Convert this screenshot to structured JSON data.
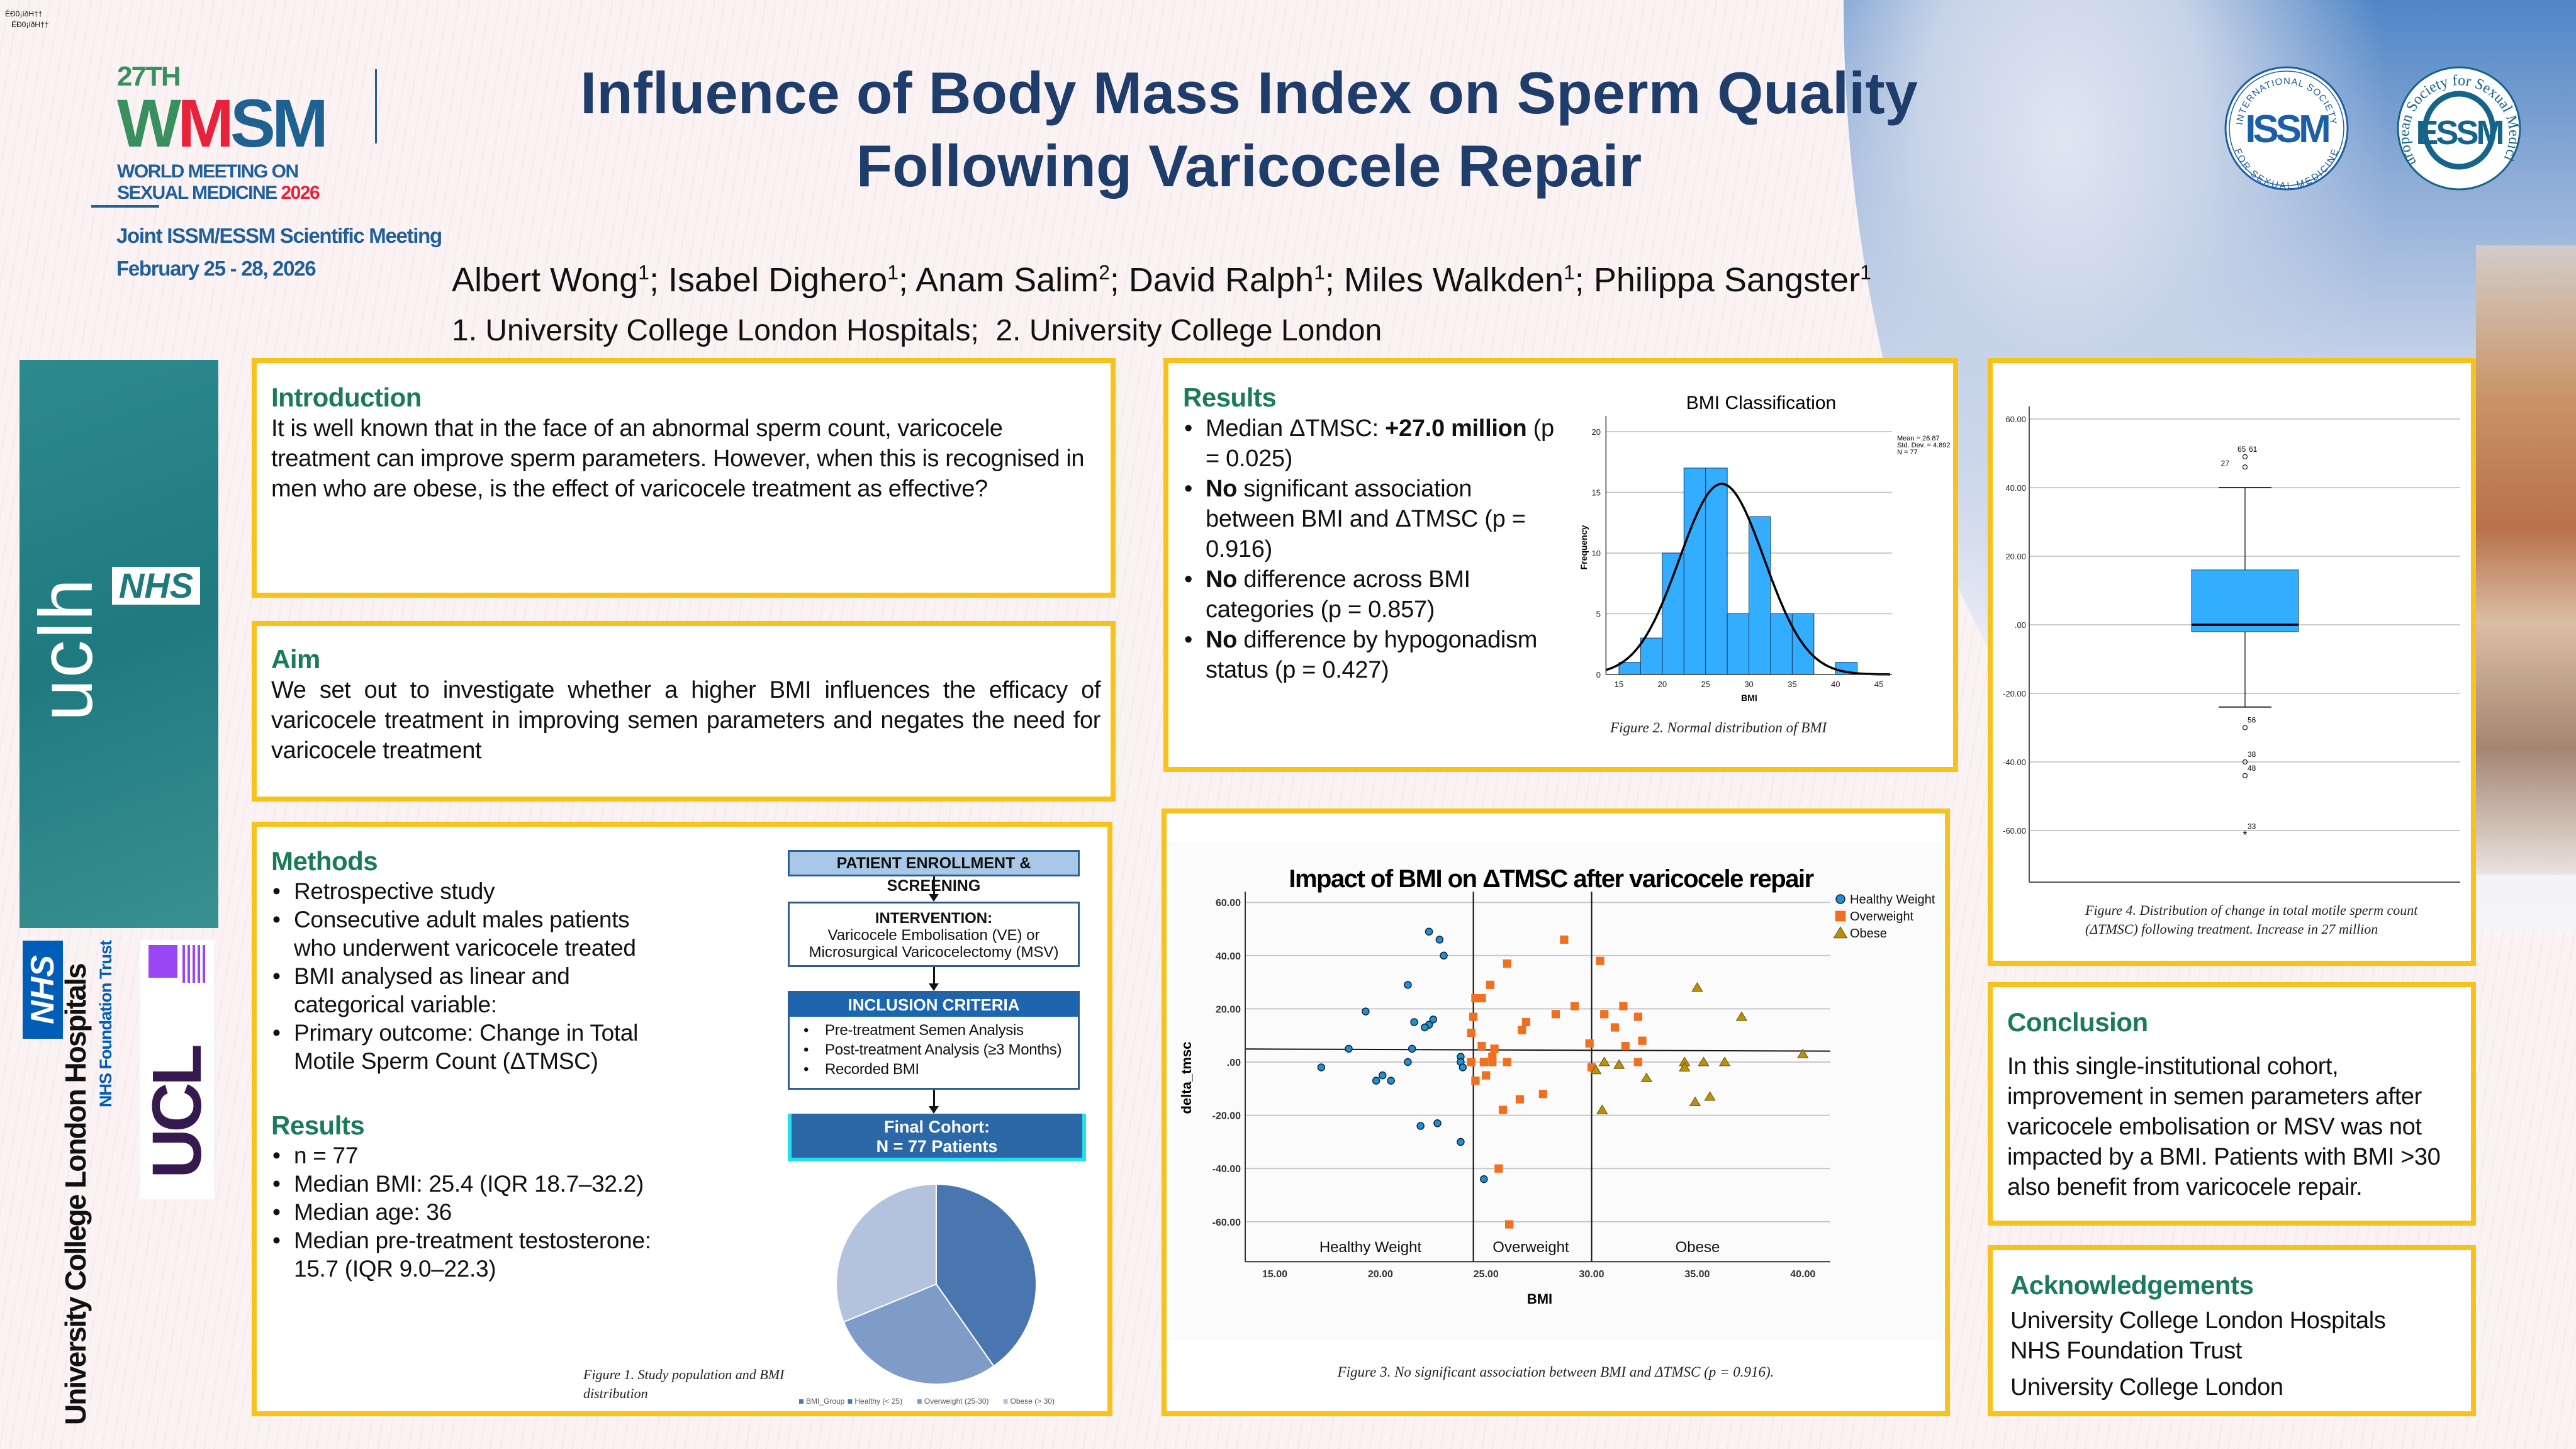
{
  "header": {
    "corner_code": [
      "ÉÐ0¡íðH††",
      "ÉÐ0¡íðH††"
    ],
    "logo": {
      "edition": "27TH",
      "acronym": [
        "W",
        "M",
        "SM"
      ],
      "line1": "WORLD MEETING ON",
      "line2": "SEXUAL MEDICINE",
      "year": "2026"
    },
    "meeting": "Joint ISSM/ESSM Scientific Meeting",
    "dates": "February 25 - 28, 2026",
    "title_line1": "Influence of Body Mass Index on Sperm Quality",
    "title_line2": "Following Varicocele Repair",
    "authors": [
      {
        "name": "Albert Wong",
        "aff": "1"
      },
      {
        "name": "Isabel Dighero",
        "aff": "1"
      },
      {
        "name": "Anam Salim",
        "aff": "2"
      },
      {
        "name": "David Ralph",
        "aff": "1"
      },
      {
        "name": "Miles Walkden",
        "aff": "1"
      },
      {
        "name": "Philippa Sangster",
        "aff": "1"
      }
    ],
    "affiliations": "1. University College London Hospitals;  2. University College London",
    "issm_logo": {
      "top": "INTERNATIONAL SOCIETY",
      "center": "ISSM",
      "bottom": "FOR SEXUAL MEDICINE",
      "color": "#1b5fa8"
    },
    "essm_logo": {
      "ring": "European Society for Sexual Medicine",
      "center": "ESSM",
      "color": "#17648a"
    }
  },
  "sidebar_logos": {
    "uclh": "uclh",
    "nhs": "NHS",
    "hospital": "University College London Hospitals",
    "trust": "NHS Foundation Trust",
    "ucl": "UCL"
  },
  "intro": {
    "heading": "Introduction",
    "text": "It is well known that in the face of an abnormal sperm count, varicocele treatment can improve sperm parameters. However, when this is recognised in men who are obese, is the effect of varicocele treatment as effective?"
  },
  "aim": {
    "heading": "Aim",
    "text": "We set out to investigate whether a higher BMI influences the efficacy of varicocele treatment in improving semen parameters and negates the need for varicocele treatment"
  },
  "methods": {
    "heading": "Methods",
    "items": [
      "Retrospective study",
      "Consecutive adult males patients who underwent varicocele treated",
      "BMI analysed as linear and categorical variable:",
      "Primary outcome: Change in Total Motile Sperm Count (ΔTMSC)"
    ],
    "results_heading": "Results",
    "results_items": [
      "n = 77",
      "Median BMI: 25.4 (IQR 18.7–32.2)",
      "Median age: 36",
      "Median pre-treatment testosterone: 15.7 (IQR 9.0–22.3)"
    ],
    "flowchart": {
      "step1": "PATIENT ENROLLMENT & SCREENING",
      "step2_title": "INTERVENTION:",
      "step2_text": "Varicocele Embolisation (VE) or Microsurgical Varicocelectomy (MSV)",
      "step3_title": "INCLUSION CRITERIA",
      "step3_items": [
        "Pre-treatment Semen Analysis",
        "Post-treatment Analysis (≥3 Months)",
        "Recorded BMI"
      ],
      "step4_line1": "Final Cohort:",
      "step4_line2": "N = 77 Patients"
    },
    "figure1_caption": "Figure 1. Study population and BMI distribution"
  },
  "results": {
    "heading": "Results",
    "items": [
      [
        {
          "t": "Median ΔTMSC: "
        },
        {
          "t": "+27.0 million",
          "b": true
        },
        {
          "t": " (p = 0.025)"
        }
      ],
      [
        {
          "t": "No",
          "b": true
        },
        {
          "t": " significant association between BMI and ΔTMSC (p = 0.916)"
        }
      ],
      [
        {
          "t": "No",
          "b": true
        },
        {
          "t": " difference across BMI categories (p = 0.857)"
        }
      ],
      [
        {
          "t": "No",
          "b": true
        },
        {
          "t": " difference by hypogonadism status (p = 0.427)"
        }
      ]
    ],
    "figure2_caption": "Figure 2. Normal distribution of BMI",
    "figure3_caption": "Figure 3. No significant association between BMI and ΔTMSC (p = 0.916).",
    "figure4_caption": "Figure 4. Distribution of change in total motile sperm count (ΔTMSC) following treatment. Increase in 27 million"
  },
  "conclusion": {
    "heading": "Conclusion",
    "text": "In this single-institutional cohort, improvement in semen parameters after varicocele embolisation or MSV was not impacted by a BMI. Patients with BMI >30 also benefit from varicocele repair."
  },
  "acknowledgements": {
    "heading": "Acknowledgements",
    "items": [
      "University College London Hospitals NHS Foundation Trust",
      "University College London"
    ]
  },
  "chart_data": [
    {
      "type": "bar",
      "title": "BMI Classification",
      "xlabel": "BMI",
      "ylabel": "Frequency",
      "bins": [
        [
          15,
          17.5
        ],
        [
          17.5,
          20
        ],
        [
          20,
          22.5
        ],
        [
          22.5,
          25
        ],
        [
          25,
          27.5
        ],
        [
          27.5,
          30
        ],
        [
          30,
          32.5
        ],
        [
          32.5,
          35
        ],
        [
          35,
          37.5
        ],
        [
          40,
          42.5
        ]
      ],
      "values": [
        1,
        3,
        10,
        17,
        17,
        5,
        13,
        5,
        5,
        1
      ],
      "xticks": [
        "15",
        "20",
        "25",
        "30",
        "35",
        "40",
        "45"
      ],
      "yticks": [
        "0",
        "5",
        "10",
        "15",
        "20"
      ],
      "xlim": [
        13.5,
        46.5
      ],
      "ylim": [
        0,
        21
      ],
      "normal_curve": {
        "mean": 26.87,
        "sd": 4.892,
        "n": 77
      },
      "stats_text": [
        "Mean = 26.87",
        "Std. Dev. = 4.892",
        "N = 77"
      ],
      "bar_color": "#33adff",
      "grid": "horizontal"
    },
    {
      "type": "scatter",
      "title": "Impact of BMI on ΔTMSC after varicocele repair",
      "xlabel": "BMI",
      "ylabel": "delta_tmsc",
      "xticks": [
        "15.00",
        "20.00",
        "25.00",
        "30.00",
        "35.00",
        "40.00"
      ],
      "yticks": [
        "60.00",
        "40.00",
        "20.00",
        ".00",
        "-20.00",
        "-40.00",
        "-60.00"
      ],
      "xlim": [
        13.6,
        41.3
      ],
      "ylim": [
        -75,
        64
      ],
      "legend": "top-right",
      "region_labels": [
        "Healthy Weight",
        "Overweight",
        "Obese"
      ],
      "reference_lines_x": [
        24.4,
        30.0
      ],
      "fit_line": [
        [
          13.6,
          4.9
        ],
        [
          41.3,
          4.1
        ]
      ],
      "series": [
        {
          "name": "Healthy Weight",
          "marker": "circle",
          "color": "#1f8fd6",
          "points": [
            [
              22.3,
              49
            ],
            [
              22.8,
              46
            ],
            [
              23.0,
              40
            ],
            [
              21.3,
              29
            ],
            [
              19.3,
              19
            ],
            [
              21.6,
              15
            ],
            [
              22.5,
              16
            ],
            [
              22.3,
              14
            ],
            [
              22.1,
              13
            ],
            [
              18.5,
              5
            ],
            [
              21.5,
              5
            ],
            [
              21.3,
              0
            ],
            [
              23.8,
              2
            ],
            [
              23.8,
              0
            ],
            [
              23.9,
              -2
            ],
            [
              17.2,
              -2
            ],
            [
              20.1,
              -5
            ],
            [
              19.8,
              -7
            ],
            [
              20.5,
              -7
            ],
            [
              21.9,
              -24
            ],
            [
              22.7,
              -23
            ],
            [
              23.8,
              -30
            ],
            [
              24.9,
              -44
            ]
          ]
        },
        {
          "name": "Overweight",
          "marker": "square",
          "color": "#f07020",
          "points": [
            [
              28.7,
              46
            ],
            [
              30.4,
              38
            ],
            [
              26.0,
              37
            ],
            [
              25.2,
              29
            ],
            [
              24.5,
              24
            ],
            [
              24.8,
              24
            ],
            [
              24.4,
              17
            ],
            [
              29.2,
              21
            ],
            [
              28.3,
              18
            ],
            [
              30.6,
              18
            ],
            [
              31.5,
              21
            ],
            [
              32.2,
              17
            ],
            [
              26.9,
              15
            ],
            [
              26.7,
              12
            ],
            [
              31.1,
              13
            ],
            [
              32.4,
              8
            ],
            [
              24.3,
              11
            ],
            [
              24.8,
              6
            ],
            [
              25.4,
              5
            ],
            [
              31.6,
              6
            ],
            [
              29.9,
              7
            ],
            [
              25.3,
              2
            ],
            [
              24.3,
              0
            ],
            [
              24.9,
              0
            ],
            [
              25.3,
              0
            ],
            [
              26.0,
              0
            ],
            [
              32.2,
              0
            ],
            [
              30.0,
              -2
            ],
            [
              25.0,
              -5
            ],
            [
              24.5,
              -7
            ],
            [
              27.7,
              -12
            ],
            [
              26.6,
              -14
            ],
            [
              25.8,
              -18
            ],
            [
              25.6,
              -40
            ],
            [
              26.1,
              -61
            ]
          ]
        },
        {
          "name": "Obese",
          "marker": "triangle",
          "color": "#b8900e",
          "points": [
            [
              35.0,
              28
            ],
            [
              37.1,
              17
            ],
            [
              40.0,
              3
            ],
            [
              30.6,
              0
            ],
            [
              30.2,
              -3
            ],
            [
              31.3,
              -1
            ],
            [
              32.6,
              -6
            ],
            [
              34.4,
              0
            ],
            [
              34.4,
              -2
            ],
            [
              35.3,
              0
            ],
            [
              36.3,
              0
            ],
            [
              30.5,
              -18
            ],
            [
              34.9,
              -15
            ],
            [
              35.6,
              -13
            ]
          ]
        }
      ]
    },
    {
      "type": "box",
      "yticks": [
        "60.00",
        "40.00",
        "20.00",
        ".00",
        "-20.00",
        "-40.00",
        "-60.00"
      ],
      "ylim": [
        -75,
        64
      ],
      "median": 0,
      "q1": -2,
      "q3": 16,
      "whisker_low": -24,
      "whisker_high": 40,
      "outliers": [
        {
          "value": 49,
          "labels": [
            "65",
            "61"
          ],
          "marker": "circle"
        },
        {
          "value": 46,
          "labels": [
            "27"
          ],
          "marker": "circle"
        },
        {
          "value": -30,
          "labels": [
            "56"
          ],
          "marker": "circle"
        },
        {
          "value": -40,
          "labels": [
            "38"
          ],
          "marker": "circle"
        },
        {
          "value": -44,
          "labels": [
            "48"
          ],
          "marker": "circle"
        },
        {
          "value": -61,
          "labels": [
            "33"
          ],
          "marker": "star"
        }
      ],
      "box_color": "#33adff",
      "grid": "horizontal"
    },
    {
      "type": "pie",
      "legend_title": "BMI_Group",
      "categories": [
        "Healthy (< 25)",
        "Overweight (25-30)",
        "Obese (> 30)"
      ],
      "values": [
        31,
        22,
        24
      ],
      "colors": [
        "#4a76b0",
        "#7f9cc8",
        "#b3c3de"
      ],
      "legend": "bottom"
    }
  ]
}
